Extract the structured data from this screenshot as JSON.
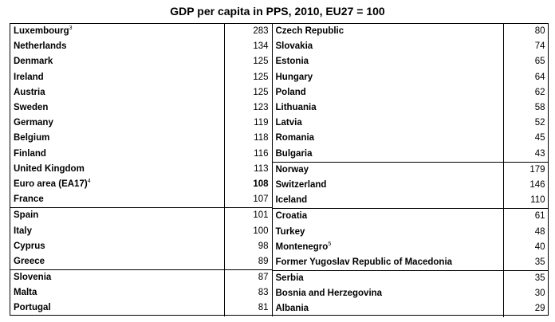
{
  "table": {
    "title": "GDP per capita in PPS, 2010, EU27 = 100",
    "left": [
      [
        {
          "name": "Luxembourg",
          "note": "3",
          "value": "283"
        },
        {
          "name": "Netherlands",
          "value": "134"
        },
        {
          "name": "Denmark",
          "value": "125"
        },
        {
          "name": "Ireland",
          "value": "125"
        },
        {
          "name": "Austria",
          "value": "125"
        },
        {
          "name": "Sweden",
          "value": "123"
        },
        {
          "name": "Germany",
          "value": "119"
        },
        {
          "name": "Belgium",
          "value": "118"
        },
        {
          "name": "Finland",
          "value": "116"
        },
        {
          "name": "United Kingdom",
          "value": "113"
        },
        {
          "name": "Euro area (EA17)",
          "note": "4",
          "value": "108",
          "bold": true
        },
        {
          "name": "France",
          "value": "107"
        }
      ],
      [
        {
          "name": "Spain",
          "value": "101"
        },
        {
          "name": "Italy",
          "value": "100"
        },
        {
          "name": "Cyprus",
          "value": "98"
        },
        {
          "name": "Greece",
          "value": "89"
        }
      ],
      [
        {
          "name": "Slovenia",
          "value": "87"
        },
        {
          "name": "Malta",
          "value": "83"
        },
        {
          "name": "Portugal",
          "value": "81"
        }
      ]
    ],
    "right": [
      [
        {
          "name": "Czech Republic",
          "value": "80"
        },
        {
          "name": "Slovakia",
          "value": "74"
        },
        {
          "name": "Estonia",
          "value": "65"
        },
        {
          "name": "Hungary",
          "value": "64"
        },
        {
          "name": "Poland",
          "value": "62"
        },
        {
          "name": "Lithuania",
          "value": "58"
        },
        {
          "name": "Latvia",
          "value": "52"
        },
        {
          "name": "Romania",
          "value": "45"
        },
        {
          "name": "Bulgaria",
          "value": "43"
        }
      ],
      [
        {
          "name": "Norway",
          "value": "179"
        },
        {
          "name": "Switzerland",
          "value": "146"
        },
        {
          "name": "Iceland",
          "value": "110"
        }
      ],
      [
        {
          "name": "Croatia",
          "value": "61"
        },
        {
          "name": "Turkey",
          "value": "48"
        },
        {
          "name": "Montenegro",
          "note": "5",
          "value": "40"
        },
        {
          "name": "Former Yugoslav Republic of Macedonia",
          "value": "35"
        }
      ],
      [
        {
          "name": "Serbia",
          "value": "35"
        },
        {
          "name": "Bosnia and Herzegovina",
          "value": "30"
        },
        {
          "name": "Albania",
          "value": "29"
        }
      ]
    ]
  }
}
